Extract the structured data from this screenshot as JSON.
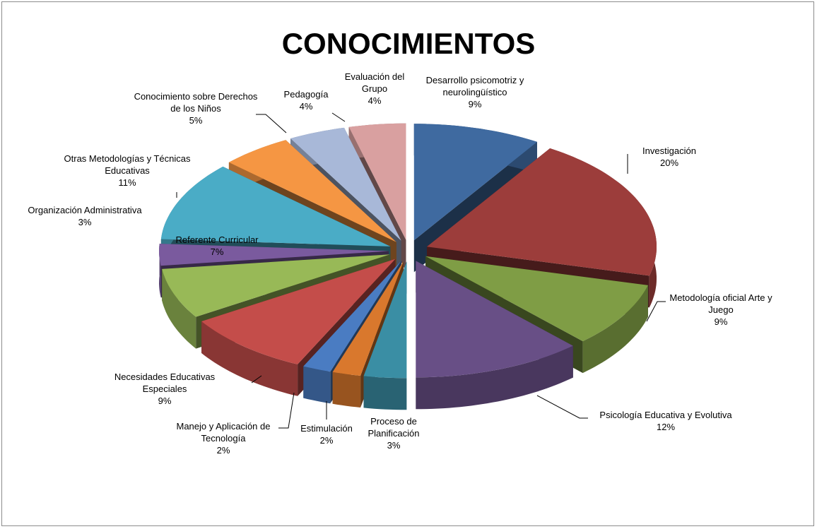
{
  "chart_data": {
    "type": "pie",
    "title": "CONOCIMIENTOS",
    "categories": [
      "Desarrollo psicomotriz y neurolingüístico",
      "Investigación",
      "Metodología oficial Arte y Juego",
      "Psicología Educativa y Evolutiva",
      "Proceso de Planificación",
      "Estimulación",
      "Manejo y Aplicación de Tecnología",
      "Necesidades Educativas Especiales",
      "Referente Curricular",
      "Organización Administrativa",
      "Otras Metodologías y Técnicas Educativas",
      "Conocimiento sobre Derechos de los Niños",
      "Pedagogía",
      "Evaluación del Grupo"
    ],
    "values": [
      9,
      20,
      9,
      12,
      3,
      2,
      2,
      9,
      7,
      3,
      11,
      5,
      4,
      4
    ],
    "value_labels": [
      "9%",
      "20%",
      "9%",
      "12%",
      "3%",
      "2%",
      "2%",
      "9%",
      "7%",
      "3%",
      "11%",
      "5%",
      "4%",
      "4%"
    ],
    "colors": [
      "#3f6aa0",
      "#9c3d3b",
      "#7f9d45",
      "#684f86",
      "#3a8ea4",
      "#d9782d",
      "#4a7cc2",
      "#c44d4a",
      "#98b957",
      "#7a5a9e",
      "#4aacc6",
      "#f59643",
      "#a8b8d8",
      "#d9a0a0"
    ]
  }
}
